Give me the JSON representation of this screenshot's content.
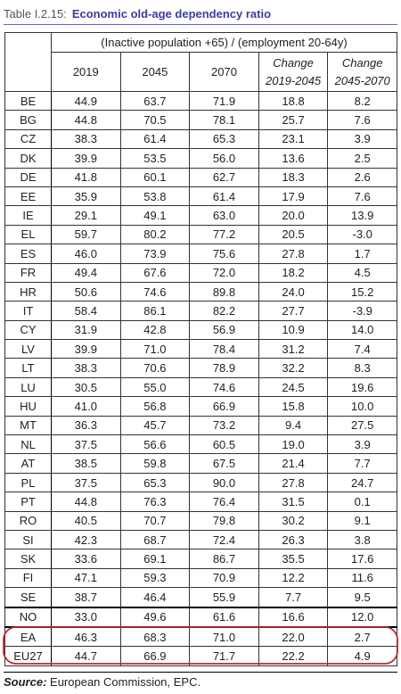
{
  "header": {
    "label": "Table I.2.15:",
    "title": "Economic old-age dependency ratio"
  },
  "table": {
    "group_header": "(Inactive population +65) / (employment 20-64y)",
    "columns": [
      "2019",
      "2045",
      "2070",
      [
        "Change",
        "2019-2045"
      ],
      [
        "Change",
        "2045-2070"
      ]
    ],
    "rows": [
      [
        "BE",
        "44.9",
        "63.7",
        "71.9",
        "18.8",
        "8.2"
      ],
      [
        "BG",
        "44.8",
        "70.5",
        "78.1",
        "25.7",
        "7.6"
      ],
      [
        "CZ",
        "38.3",
        "61.4",
        "65.3",
        "23.1",
        "3.9"
      ],
      [
        "DK",
        "39.9",
        "53.5",
        "56.0",
        "13.6",
        "2.5"
      ],
      [
        "DE",
        "41.8",
        "60.1",
        "62.7",
        "18.3",
        "2.6"
      ],
      [
        "EE",
        "35.9",
        "53.8",
        "61.4",
        "17.9",
        "7.6"
      ],
      [
        "IE",
        "29.1",
        "49.1",
        "63.0",
        "20.0",
        "13.9"
      ],
      [
        "EL",
        "59.7",
        "80.2",
        "77.2",
        "20.5",
        "-3.0"
      ],
      [
        "ES",
        "46.0",
        "73.9",
        "75.6",
        "27.8",
        "1.7"
      ],
      [
        "FR",
        "49.4",
        "67.6",
        "72.0",
        "18.2",
        "4.5"
      ],
      [
        "HR",
        "50.6",
        "74.6",
        "89.8",
        "24.0",
        "15.2"
      ],
      [
        "IT",
        "58.4",
        "86.1",
        "82.2",
        "27.7",
        "-3.9"
      ],
      [
        "CY",
        "31.9",
        "42.8",
        "56.9",
        "10.9",
        "14.0"
      ],
      [
        "LV",
        "39.9",
        "71.0",
        "78.4",
        "31.2",
        "7.4"
      ],
      [
        "LT",
        "38.3",
        "70.6",
        "78.9",
        "32.2",
        "8.3"
      ],
      [
        "LU",
        "30.5",
        "55.0",
        "74.6",
        "24.5",
        "19.6"
      ],
      [
        "HU",
        "41.0",
        "56.8",
        "66.9",
        "15.8",
        "10.0"
      ],
      [
        "MT",
        "36.3",
        "45.7",
        "73.2",
        "9.4",
        "27.5"
      ],
      [
        "NL",
        "37.5",
        "56.6",
        "60.5",
        "19.0",
        "3.9"
      ],
      [
        "AT",
        "38.5",
        "59.8",
        "67.5",
        "21.4",
        "7.7"
      ],
      [
        "PL",
        "37.5",
        "65.3",
        "90.0",
        "27.8",
        "24.7"
      ],
      [
        "PT",
        "44.8",
        "76.3",
        "76.4",
        "31.5",
        "0.1"
      ],
      [
        "RO",
        "40.5",
        "70.7",
        "79.8",
        "30.2",
        "9.1"
      ],
      [
        "SI",
        "42.3",
        "68.7",
        "72.4",
        "26.3",
        "3.8"
      ],
      [
        "SK",
        "33.6",
        "69.1",
        "86.7",
        "35.5",
        "17.6"
      ],
      [
        "FI",
        "47.1",
        "59.3",
        "70.9",
        "12.2",
        "11.6"
      ],
      [
        "SE",
        "38.7",
        "46.4",
        "55.9",
        "7.7",
        "9.5"
      ],
      [
        "NO",
        "33.0",
        "49.6",
        "61.6",
        "16.6",
        "12.0"
      ],
      [
        "EA",
        "46.3",
        "68.3",
        "71.0",
        "22.0",
        "2.7"
      ],
      [
        "EU27",
        "44.7",
        "66.9",
        "71.7",
        "22.2",
        "4.9"
      ]
    ]
  },
  "source": {
    "label": "Source:",
    "text": "European Commission, EPC."
  }
}
